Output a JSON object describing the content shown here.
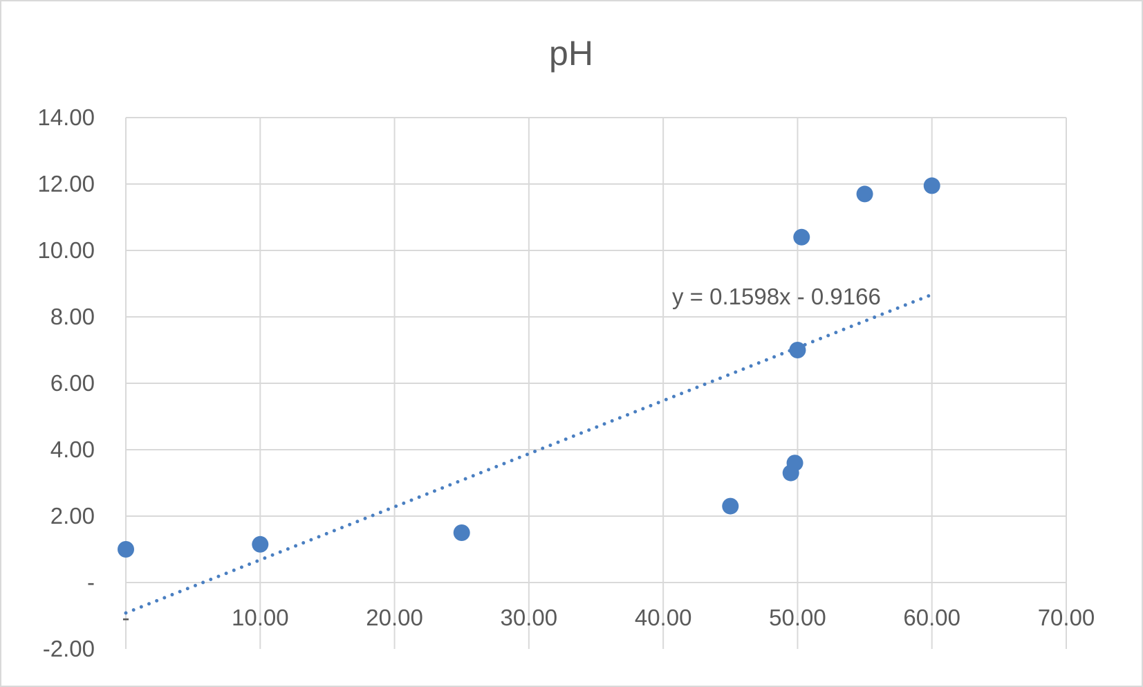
{
  "chart_data": {
    "type": "scatter",
    "title": "pH",
    "xlabel": "",
    "ylabel": "",
    "xlim": [
      0,
      70
    ],
    "ylim": [
      -2,
      14
    ],
    "x_ticks": [
      {
        "value": 0,
        "label": "-"
      },
      {
        "value": 10,
        "label": "10.00"
      },
      {
        "value": 20,
        "label": "20.00"
      },
      {
        "value": 30,
        "label": "30.00"
      },
      {
        "value": 40,
        "label": "40.00"
      },
      {
        "value": 50,
        "label": "50.00"
      },
      {
        "value": 60,
        "label": "60.00"
      },
      {
        "value": 70,
        "label": "70.00"
      }
    ],
    "y_ticks": [
      {
        "value": -2,
        "label": "-2.00"
      },
      {
        "value": 0,
        "label": "-"
      },
      {
        "value": 2,
        "label": "2.00"
      },
      {
        "value": 4,
        "label": "4.00"
      },
      {
        "value": 6,
        "label": "6.00"
      },
      {
        "value": 8,
        "label": "8.00"
      },
      {
        "value": 10,
        "label": "10.00"
      },
      {
        "value": 12,
        "label": "12.00"
      },
      {
        "value": 14,
        "label": "14.00"
      }
    ],
    "grid": true,
    "legend": "none",
    "series": [
      {
        "x": [
          0,
          10,
          25,
          45,
          49.5,
          49.8,
          50,
          50.3,
          55,
          60
        ],
        "y": [
          1.0,
          1.15,
          1.5,
          2.3,
          3.3,
          3.6,
          7.0,
          10.4,
          11.7,
          11.95
        ],
        "color": "#4a7fc1"
      }
    ],
    "trendline": {
      "type": "linear",
      "slope": 0.1598,
      "intercept": -0.9166,
      "x_range": [
        0,
        60
      ],
      "style": "dotted",
      "color": "#4a7fc1",
      "equation_label": "y = 0.1598x - 0.9166"
    }
  }
}
